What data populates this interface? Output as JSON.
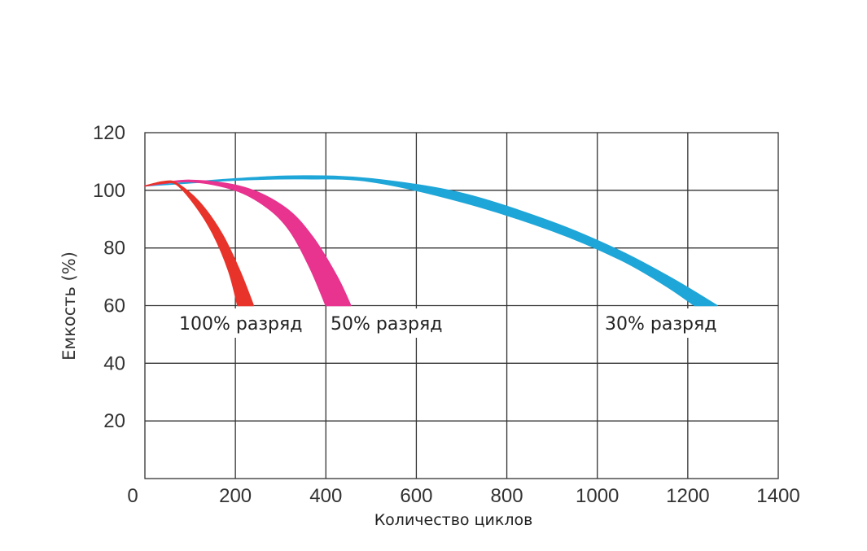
{
  "chart_data": {
    "type": "area",
    "xlabel": "Количество циклов",
    "ylabel": "Емкость (%)",
    "xlim": [
      0,
      1400
    ],
    "ylim": [
      0,
      120
    ],
    "x_ticks": [
      "0",
      "200",
      "400",
      "600",
      "800",
      "1000",
      "1200",
      "1400"
    ],
    "y_ticks": [
      "20",
      "40",
      "60",
      "80",
      "100",
      "120"
    ],
    "grid": true,
    "series": [
      {
        "name": "100% разряд",
        "color": "#e8332a",
        "upper": [
          [
            0,
            101.5
          ],
          [
            40,
            103
          ],
          [
            70,
            102.5
          ],
          [
            120,
            96
          ],
          [
            170,
            85
          ],
          [
            210,
            72
          ],
          [
            240,
            60
          ]
        ],
        "lower": [
          [
            0,
            101.5
          ],
          [
            40,
            102.5
          ],
          [
            70,
            102
          ],
          [
            110,
            95
          ],
          [
            150,
            85
          ],
          [
            185,
            72
          ],
          [
            205,
            60
          ]
        ]
      },
      {
        "name": "50% разряд",
        "color": "#e8338f",
        "upper": [
          [
            0,
            101.5
          ],
          [
            100,
            103.5
          ],
          [
            220,
            101
          ],
          [
            310,
            94
          ],
          [
            370,
            84
          ],
          [
            425,
            70
          ],
          [
            455,
            60
          ]
        ],
        "lower": [
          [
            0,
            101.5
          ],
          [
            100,
            103
          ],
          [
            200,
            100
          ],
          [
            270,
            94
          ],
          [
            320,
            86
          ],
          [
            365,
            73
          ],
          [
            400,
            60
          ]
        ]
      },
      {
        "name": "30% разряд",
        "color": "#1ea6d8",
        "upper": [
          [
            0,
            101.5
          ],
          [
            200,
            104
          ],
          [
            350,
            105
          ],
          [
            500,
            104
          ],
          [
            700,
            99
          ],
          [
            900,
            89
          ],
          [
            1050,
            79
          ],
          [
            1170,
            69
          ],
          [
            1265,
            60
          ]
        ],
        "lower": [
          [
            0,
            101.5
          ],
          [
            200,
            103.5
          ],
          [
            350,
            104
          ],
          [
            500,
            103
          ],
          [
            700,
            96
          ],
          [
            900,
            86
          ],
          [
            1050,
            76
          ],
          [
            1150,
            67
          ],
          [
            1215,
            60
          ]
        ]
      }
    ],
    "annotations": [
      "100% разряд",
      "50% разряд",
      "30% разряд"
    ]
  }
}
